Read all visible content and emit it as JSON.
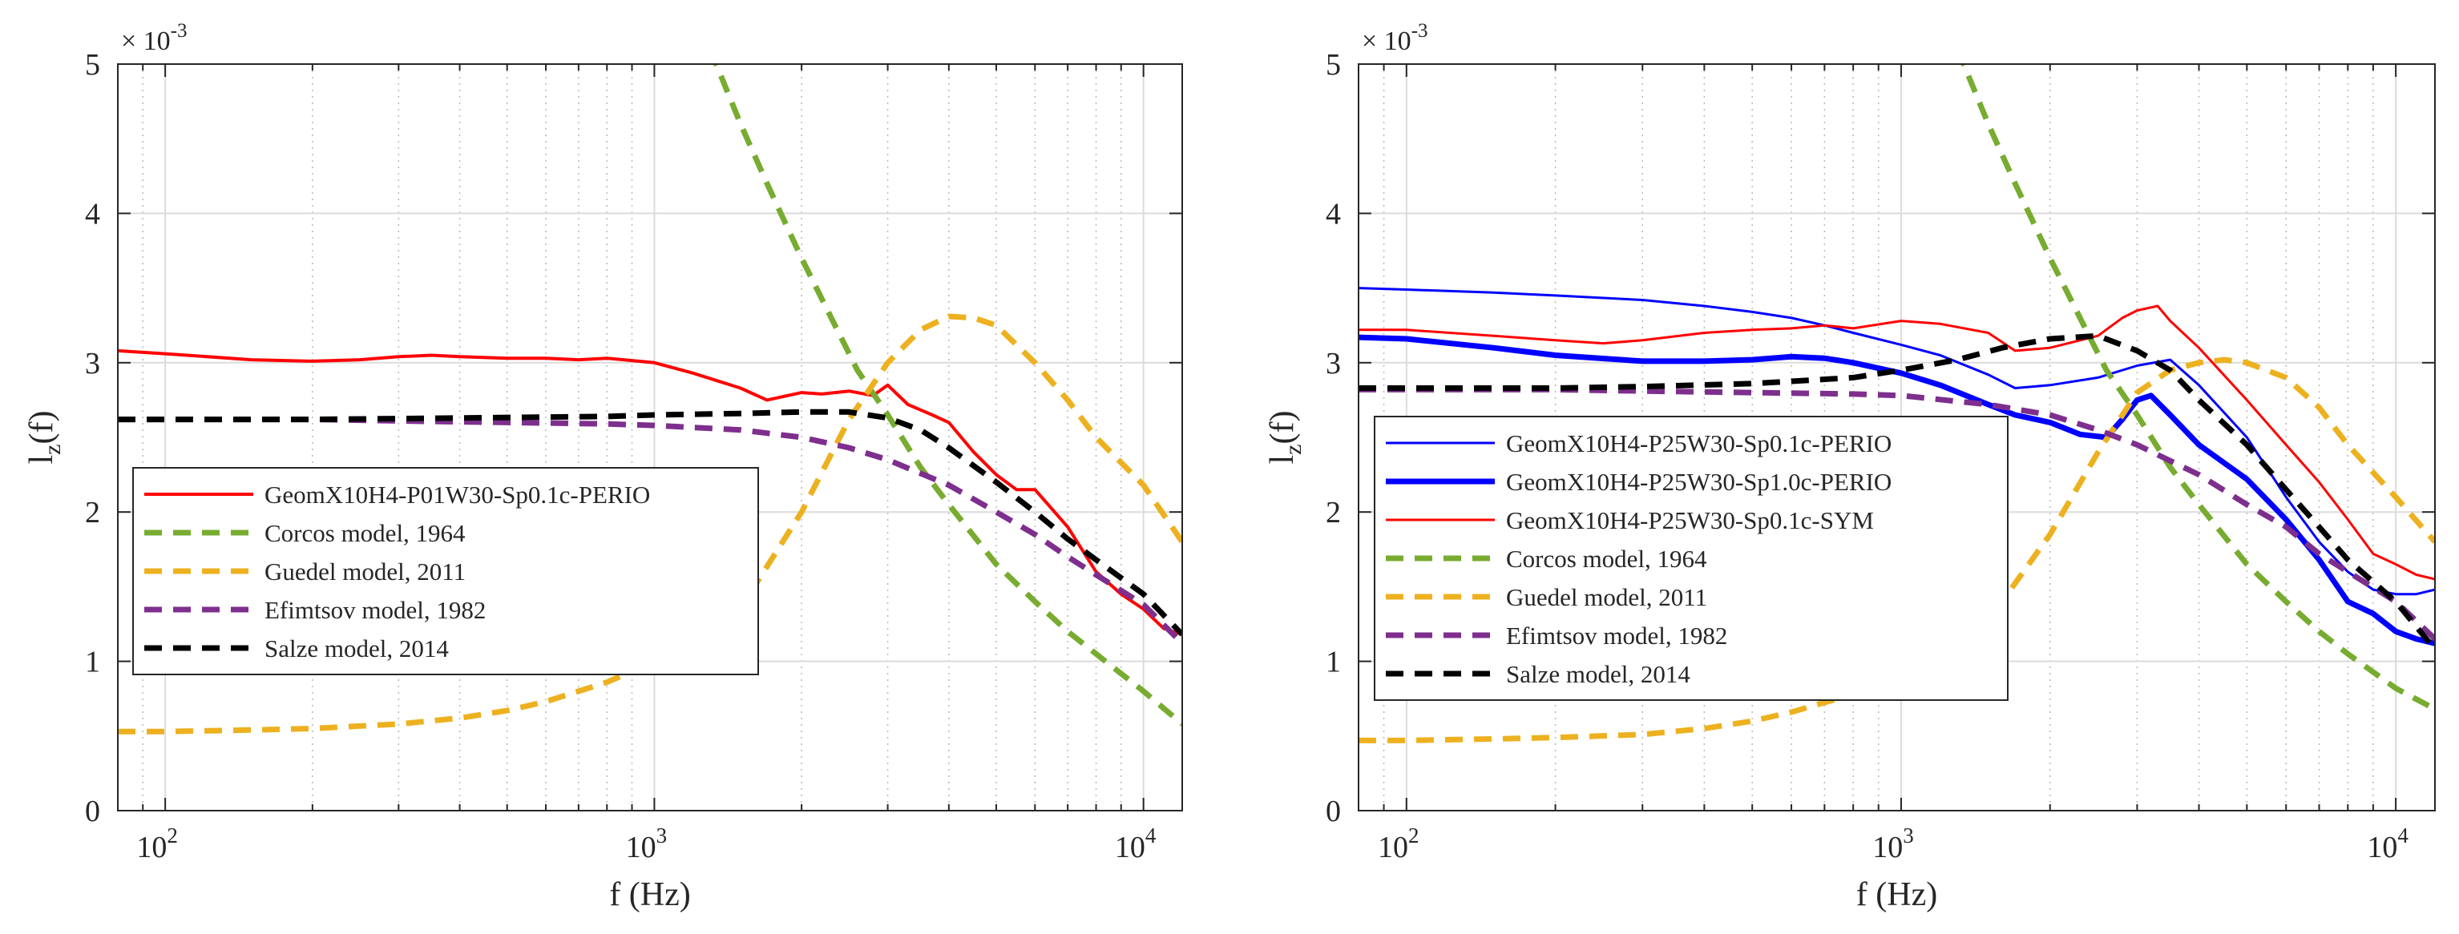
{
  "chart_data": [
    {
      "type": "line",
      "panel": "left",
      "xscale": "log",
      "xlim": [
        80,
        12000
      ],
      "ylim": [
        0,
        0.005
      ],
      "xlabel": "f (Hz)",
      "ylabel": "l",
      "ylabel_sub": "z",
      "ylabel_tail": "(f)",
      "y_exponent": {
        "base": "× 10",
        "power": "-3"
      },
      "grid": true,
      "legend_position": "middle-left",
      "xticks": [
        {
          "value": 100,
          "base": "10",
          "exp": "2"
        },
        {
          "value": 1000,
          "base": "10",
          "exp": "3"
        },
        {
          "value": 10000,
          "base": "10",
          "exp": "4"
        }
      ],
      "yticks": [
        {
          "value": 0,
          "label": "0"
        },
        {
          "value": 0.001,
          "label": "1"
        },
        {
          "value": 0.002,
          "label": "2"
        },
        {
          "value": 0.003,
          "label": "3"
        },
        {
          "value": 0.004,
          "label": "4"
        },
        {
          "value": 0.005,
          "label": "5"
        }
      ],
      "series": [
        {
          "name": "GeomX10H4-P01W30-Sp0.1c-PERIO",
          "color": "#ff0000",
          "dash": "solid",
          "width": 4,
          "x": [
            80,
            100,
            150,
            200,
            250,
            300,
            350,
            400,
            500,
            600,
            700,
            800,
            1000,
            1200,
            1500,
            1700,
            2000,
            2200,
            2500,
            2800,
            3000,
            3300,
            3700,
            4000,
            4500,
            5000,
            5500,
            6000,
            7000,
            8000,
            9000,
            10000,
            11000,
            12000
          ],
          "y": [
            0.00308,
            0.00306,
            0.00302,
            0.00301,
            0.00302,
            0.00304,
            0.00305,
            0.00304,
            0.00303,
            0.00303,
            0.00302,
            0.00303,
            0.003,
            0.00293,
            0.00283,
            0.00275,
            0.0028,
            0.00279,
            0.00281,
            0.00278,
            0.00285,
            0.00272,
            0.00265,
            0.0026,
            0.0024,
            0.00225,
            0.00215,
            0.00215,
            0.0019,
            0.0016,
            0.00145,
            0.00135,
            0.00122,
            0.00118
          ]
        },
        {
          "name": "Corcos model, 1964",
          "color": "#77ac30",
          "dash": "dashed",
          "width": 7,
          "x": [
            1300,
            1500,
            1700,
            2000,
            2300,
            2600,
            3000,
            3500,
            4000,
            5000,
            6000,
            7000,
            8000,
            10000,
            12000
          ],
          "y": [
            0.0051,
            0.0046,
            0.0042,
            0.0037,
            0.0033,
            0.00295,
            0.00265,
            0.0023,
            0.00205,
            0.00165,
            0.0014,
            0.0012,
            0.00105,
            0.0008,
            0.00058
          ]
        },
        {
          "name": "Guedel model, 2011",
          "color": "#edb120",
          "dash": "dashed",
          "width": 7,
          "x": [
            80,
            100,
            150,
            200,
            300,
            400,
            500,
            600,
            800,
            1000,
            1300,
            1600,
            2000,
            2500,
            3000,
            3500,
            4000,
            4500,
            5000,
            6000,
            7000,
            8000,
            10000,
            12000
          ],
          "y": [
            0.00053,
            0.00053,
            0.00054,
            0.00055,
            0.00058,
            0.00062,
            0.00067,
            0.00073,
            0.00086,
            0.001,
            0.00123,
            0.0015,
            0.002,
            0.00262,
            0.003,
            0.00322,
            0.00331,
            0.0033,
            0.00325,
            0.003,
            0.00275,
            0.0025,
            0.00218,
            0.0018
          ]
        },
        {
          "name": "Efimtsov model, 1982",
          "color": "#7e2f8e",
          "dash": "dashed",
          "width": 7,
          "x": [
            80,
            100,
            200,
            300,
            500,
            800,
            1000,
            1500,
            2000,
            2500,
            3000,
            4000,
            5000,
            6000,
            7000,
            8000,
            10000,
            12000
          ],
          "y": [
            0.00262,
            0.00262,
            0.00262,
            0.00261,
            0.0026,
            0.00259,
            0.00258,
            0.00255,
            0.0025,
            0.00243,
            0.00235,
            0.00218,
            0.002,
            0.00185,
            0.0017,
            0.00158,
            0.00138,
            0.00112
          ]
        },
        {
          "name": "Salze model, 2014",
          "color": "#000000",
          "dash": "dashed",
          "width": 7,
          "x": [
            80,
            100,
            200,
            400,
            800,
            1000,
            1500,
            2000,
            2500,
            3000,
            3500,
            4000,
            5000,
            6000,
            7000,
            8000,
            10000,
            12000
          ],
          "y": [
            0.00262,
            0.00262,
            0.00262,
            0.00263,
            0.00264,
            0.00265,
            0.00266,
            0.00267,
            0.00267,
            0.00263,
            0.00255,
            0.00243,
            0.0022,
            0.002,
            0.00182,
            0.00168,
            0.00145,
            0.00118
          ]
        }
      ]
    },
    {
      "type": "line",
      "panel": "right",
      "xscale": "log",
      "xlim": [
        80,
        12000
      ],
      "ylim": [
        0,
        0.005
      ],
      "xlabel": "f (Hz)",
      "ylabel": "l",
      "ylabel_sub": "z",
      "ylabel_tail": "(f)",
      "y_exponent": {
        "base": "× 10",
        "power": "-3"
      },
      "grid": true,
      "legend_position": "middle-left",
      "xticks": [
        {
          "value": 100,
          "base": "10",
          "exp": "2"
        },
        {
          "value": 1000,
          "base": "10",
          "exp": "3"
        },
        {
          "value": 10000,
          "base": "10",
          "exp": "4"
        }
      ],
      "yticks": [
        {
          "value": 0,
          "label": "0"
        },
        {
          "value": 0.001,
          "label": "1"
        },
        {
          "value": 0.002,
          "label": "2"
        },
        {
          "value": 0.003,
          "label": "3"
        },
        {
          "value": 0.004,
          "label": "4"
        },
        {
          "value": 0.005,
          "label": "5"
        }
      ],
      "series": [
        {
          "name": "GeomX10H4-P25W30-Sp0.1c-PERIO",
          "color": "#0000ff",
          "dash": "solid",
          "width": 3,
          "x": [
            80,
            100,
            150,
            200,
            300,
            400,
            500,
            600,
            700,
            800,
            1000,
            1200,
            1500,
            1700,
            2000,
            2500,
            3000,
            3500,
            4000,
            5000,
            6000,
            7000,
            8000,
            9000,
            10000,
            11000,
            12000
          ],
          "y": [
            0.0035,
            0.00349,
            0.00347,
            0.00345,
            0.00342,
            0.00338,
            0.00334,
            0.0033,
            0.00325,
            0.0032,
            0.00312,
            0.00305,
            0.00292,
            0.00283,
            0.00285,
            0.0029,
            0.00298,
            0.00302,
            0.00285,
            0.0025,
            0.0021,
            0.0018,
            0.0016,
            0.00148,
            0.00145,
            0.00145,
            0.00148
          ]
        },
        {
          "name": "GeomX10H4-P25W30-Sp1.0c-PERIO",
          "color": "#0000ff",
          "dash": "solid",
          "width": 7,
          "x": [
            80,
            100,
            150,
            200,
            300,
            400,
            500,
            600,
            700,
            800,
            1000,
            1200,
            1500,
            1700,
            2000,
            2300,
            2600,
            2800,
            3000,
            3200,
            3500,
            4000,
            5000,
            6000,
            7000,
            8000,
            9000,
            10000,
            11000,
            12000
          ],
          "y": [
            0.00317,
            0.00316,
            0.0031,
            0.00305,
            0.00301,
            0.00301,
            0.00302,
            0.00304,
            0.00303,
            0.003,
            0.00293,
            0.00285,
            0.00272,
            0.00265,
            0.0026,
            0.00252,
            0.0025,
            0.00262,
            0.00275,
            0.00278,
            0.00265,
            0.00245,
            0.00222,
            0.00195,
            0.00168,
            0.0014,
            0.00132,
            0.0012,
            0.00115,
            0.00112
          ]
        },
        {
          "name": "GeomX10H4-P25W30-Sp0.1c-SYM",
          "color": "#ff0000",
          "dash": "solid",
          "width": 3,
          "x": [
            80,
            100,
            150,
            200,
            250,
            300,
            400,
            500,
            600,
            700,
            800,
            1000,
            1200,
            1500,
            1700,
            2000,
            2500,
            2800,
            3000,
            3300,
            3500,
            4000,
            5000,
            6000,
            7000,
            8000,
            9000,
            10000,
            11000,
            12000
          ],
          "y": [
            0.00322,
            0.00322,
            0.00318,
            0.00315,
            0.00313,
            0.00315,
            0.0032,
            0.00322,
            0.00323,
            0.00325,
            0.00323,
            0.00328,
            0.00326,
            0.0032,
            0.00308,
            0.0031,
            0.00318,
            0.0033,
            0.00335,
            0.00338,
            0.00328,
            0.0031,
            0.00275,
            0.00245,
            0.0022,
            0.00195,
            0.00172,
            0.00165,
            0.00158,
            0.00155
          ]
        },
        {
          "name": "Corcos model, 1964",
          "color": "#77ac30",
          "dash": "dashed",
          "width": 7,
          "x": [
            1300,
            1500,
            1700,
            2000,
            2300,
            2600,
            3000,
            3500,
            4000,
            5000,
            6000,
            7000,
            8000,
            10000,
            12000
          ],
          "y": [
            0.0051,
            0.0046,
            0.0042,
            0.0037,
            0.0033,
            0.00295,
            0.00265,
            0.0023,
            0.00205,
            0.00165,
            0.0014,
            0.0012,
            0.00105,
            0.00082,
            0.00068
          ]
        },
        {
          "name": "Guedel model, 2011",
          "color": "#edb120",
          "dash": "dashed",
          "width": 7,
          "x": [
            80,
            100,
            150,
            200,
            300,
            400,
            500,
            600,
            800,
            1000,
            1300,
            1600,
            2000,
            2500,
            3000,
            3500,
            4000,
            4500,
            5000,
            6000,
            7000,
            8000,
            10000,
            12000
          ],
          "y": [
            0.00047,
            0.00047,
            0.00048,
            0.00049,
            0.00051,
            0.00055,
            0.0006,
            0.00066,
            0.00078,
            0.00092,
            0.00115,
            0.0014,
            0.00185,
            0.0024,
            0.0028,
            0.00295,
            0.003,
            0.00302,
            0.003,
            0.0029,
            0.0027,
            0.00245,
            0.0021,
            0.0018
          ]
        },
        {
          "name": "Efimtsov model, 1982",
          "color": "#7e2f8e",
          "dash": "dashed",
          "width": 7,
          "x": [
            80,
            100,
            200,
            300,
            500,
            800,
            1000,
            1500,
            2000,
            2500,
            3000,
            4000,
            5000,
            6000,
            7000,
            8000,
            10000,
            12000
          ],
          "y": [
            0.00282,
            0.00282,
            0.00282,
            0.00281,
            0.0028,
            0.00279,
            0.00278,
            0.00272,
            0.00265,
            0.00255,
            0.00245,
            0.00225,
            0.00205,
            0.0019,
            0.00172,
            0.0016,
            0.0014,
            0.00115
          ]
        },
        {
          "name": "Salze model, 2014",
          "color": "#000000",
          "dash": "dashed",
          "width": 7,
          "x": [
            80,
            100,
            200,
            300,
            500,
            800,
            1000,
            1300,
            1600,
            2000,
            2500,
            3000,
            3500,
            4000,
            5000,
            6000,
            7000,
            8000,
            10000,
            12000
          ],
          "y": [
            0.00283,
            0.00283,
            0.00283,
            0.00284,
            0.00286,
            0.0029,
            0.00295,
            0.00302,
            0.0031,
            0.00316,
            0.00318,
            0.00308,
            0.00295,
            0.00275,
            0.00245,
            0.00215,
            0.0019,
            0.00168,
            0.0014,
            0.00108
          ]
        }
      ]
    }
  ]
}
